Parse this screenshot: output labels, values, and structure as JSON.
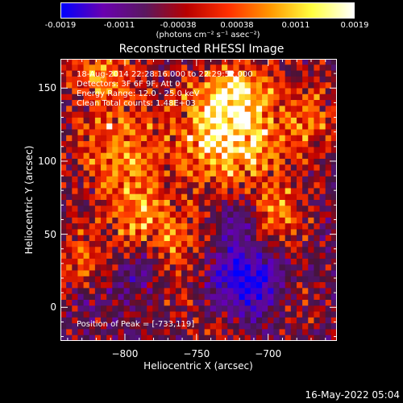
{
  "chart_data": {
    "type": "heatmap",
    "title": "Reconstructed RHESSI Image",
    "xlabel": "Heliocentric X (arcsec)",
    "ylabel": "Heliocentric Y (arcsec)",
    "xlim": [
      -845,
      -652
    ],
    "ylim": [
      -23,
      170
    ],
    "x_ticks": [
      -800,
      -750,
      -700
    ],
    "y_ticks": [
      0,
      50,
      100,
      150
    ],
    "colorbar": {
      "range": [
        -0.0019,
        0.0019
      ],
      "tick_labels": [
        "-0.0019",
        "-0.0011",
        "-0.00038",
        "0.00038",
        "0.0011",
        "0.0019"
      ],
      "unit": "(photons cm⁻² s⁻¹ asec⁻²)",
      "colors": [
        "#0000ff",
        "#6a00b0",
        "#5a1860",
        "#b80000",
        "#ff3000",
        "#ff9800",
        "#ffff40",
        "#ffffff"
      ]
    },
    "annotations": {
      "time": "18-Aug-2014 22:28:16.000 to 22:29:52.000",
      "detectors": "Detectors: 3F 6F 9F, Att 0",
      "energy": "Energy Range: 12.0 - 25.0 keV",
      "clean": "Clean    Total counts: 1.48E+03",
      "peak": "Position of Peak = [-733,119]"
    },
    "peak": {
      "x": -733,
      "y": 119
    },
    "sources": [
      {
        "x": -733,
        "y": 119,
        "sx": 22,
        "sy": 26,
        "amp": 1.0
      },
      {
        "x": -718,
        "y": 150,
        "sx": 18,
        "sy": 14,
        "amp": 0.55
      },
      {
        "x": -805,
        "y": 110,
        "sx": 22,
        "sy": 28,
        "amp": 0.65
      },
      {
        "x": -820,
        "y": 160,
        "sx": 20,
        "sy": 12,
        "amp": 0.55
      },
      {
        "x": -790,
        "y": 60,
        "sx": 16,
        "sy": 20,
        "amp": 0.55
      },
      {
        "x": -830,
        "y": 25,
        "sx": 14,
        "sy": 22,
        "amp": 0.5
      },
      {
        "x": -760,
        "y": 45,
        "sx": 14,
        "sy": 16,
        "amp": 0.5
      },
      {
        "x": -695,
        "y": 60,
        "sx": 16,
        "sy": 20,
        "amp": 0.6
      },
      {
        "x": -670,
        "y": 130,
        "sx": 14,
        "sy": 22,
        "amp": 0.5
      },
      {
        "x": -700,
        "y": 110,
        "sx": 14,
        "sy": 14,
        "amp": 0.35
      },
      {
        "x": -760,
        "y": 10,
        "sx": 18,
        "sy": 14,
        "amp": 0.25
      },
      {
        "x": -680,
        "y": 5,
        "sx": 14,
        "sy": 14,
        "amp": 0.3
      },
      {
        "x": -735,
        "y": -15,
        "sx": 14,
        "sy": 8,
        "amp": 0.3
      }
    ],
    "negative_regions": [
      {
        "x": -715,
        "y": 20,
        "sx": 20,
        "sy": 18,
        "amp": 0.9
      },
      {
        "x": -720,
        "y": 60,
        "sx": 10,
        "sy": 10,
        "amp": 0.5
      },
      {
        "x": -825,
        "y": 5,
        "sx": 10,
        "sy": 10,
        "amp": 0.4
      },
      {
        "x": -790,
        "y": 25,
        "sx": 14,
        "sy": 12,
        "amp": 0.4
      }
    ]
  },
  "footer": {
    "date": "16-May-2022 05:04"
  }
}
